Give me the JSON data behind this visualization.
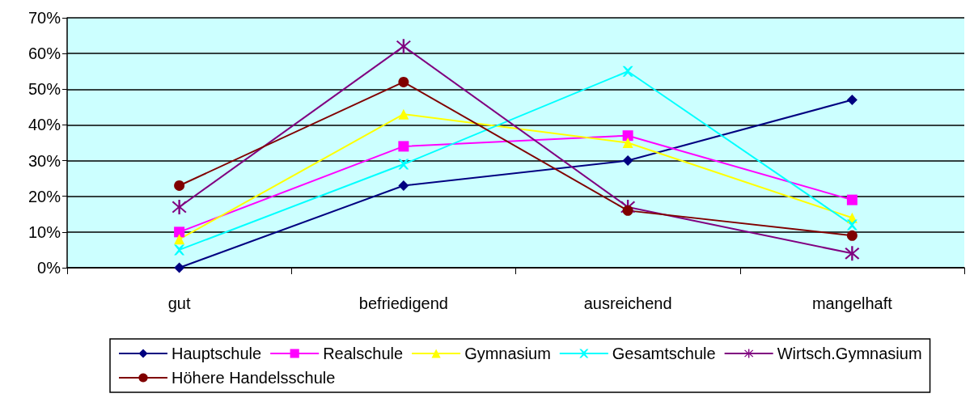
{
  "chart_data": {
    "type": "line",
    "categories": [
      "gut",
      "befriedigend",
      "ausreichend",
      "mangelhaft"
    ],
    "series": [
      {
        "name": "Hauptschule",
        "color": "#000080",
        "marker": "diamond",
        "values": [
          0,
          23,
          30,
          47
        ]
      },
      {
        "name": "Realschule",
        "color": "#ff00ff",
        "marker": "square",
        "values": [
          10,
          34,
          37,
          19
        ]
      },
      {
        "name": "Gymnasium",
        "color": "#ffff00",
        "marker": "triangle",
        "values": [
          8,
          43,
          35,
          14
        ]
      },
      {
        "name": "Gesamtschule",
        "color": "#00ffff",
        "marker": "cross",
        "values": [
          5,
          29,
          55,
          12
        ]
      },
      {
        "name": "Wirtsch.Gymnasium",
        "color": "#800080",
        "marker": "star",
        "values": [
          17,
          62,
          17,
          4
        ]
      },
      {
        "name": "Höhere Handelsschule",
        "color": "#800000",
        "marker": "circle",
        "values": [
          23,
          52,
          16,
          9
        ]
      }
    ],
    "ylim": [
      0,
      70
    ],
    "yticks": [
      {
        "value": 0,
        "label": "0%"
      },
      {
        "value": 10,
        "label": "10%"
      },
      {
        "value": 20,
        "label": "20%"
      },
      {
        "value": 30,
        "label": "30%"
      },
      {
        "value": 40,
        "label": "40%"
      },
      {
        "value": 50,
        "label": "50%"
      },
      {
        "value": 60,
        "label": "60%"
      },
      {
        "value": 70,
        "label": "70%"
      }
    ],
    "grid": "y",
    "legend": "bottom",
    "line_style": "solid"
  }
}
